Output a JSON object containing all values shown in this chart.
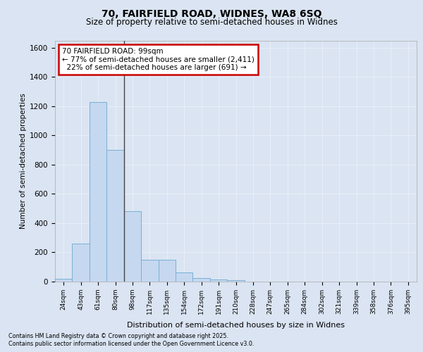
{
  "title_line1": "70, FAIRFIELD ROAD, WIDNES, WA8 6SQ",
  "title_line2": "Size of property relative to semi-detached houses in Widnes",
  "xlabel": "Distribution of semi-detached houses by size in Widnes",
  "ylabel": "Number of semi-detached properties",
  "categories": [
    "24sqm",
    "43sqm",
    "61sqm",
    "80sqm",
    "98sqm",
    "117sqm",
    "135sqm",
    "154sqm",
    "172sqm",
    "191sqm",
    "210sqm",
    "228sqm",
    "247sqm",
    "265sqm",
    "284sqm",
    "302sqm",
    "321sqm",
    "339sqm",
    "358sqm",
    "376sqm",
    "395sqm"
  ],
  "values": [
    20,
    260,
    1230,
    900,
    480,
    150,
    150,
    65,
    25,
    15,
    10,
    0,
    0,
    0,
    0,
    0,
    0,
    0,
    0,
    0,
    0
  ],
  "bar_color": "#c5d8f0",
  "bar_edge_color": "#7bafd4",
  "vline_bin_index": 4,
  "annotation_title": "70 FAIRFIELD ROAD: 99sqm",
  "annotation_line2": "← 77% of semi-detached houses are smaller (2,411)",
  "annotation_line3": "22% of semi-detached houses are larger (691) →",
  "annotation_box_fill": "#ffffff",
  "annotation_box_edge": "#cc0000",
  "ylim_max": 1650,
  "yticks": [
    0,
    200,
    400,
    600,
    800,
    1000,
    1200,
    1400,
    1600
  ],
  "background_color": "#dae4f2",
  "grid_color": "#e8eef8",
  "footer_line1": "Contains HM Land Registry data © Crown copyright and database right 2025.",
  "footer_line2": "Contains public sector information licensed under the Open Government Licence v3.0."
}
